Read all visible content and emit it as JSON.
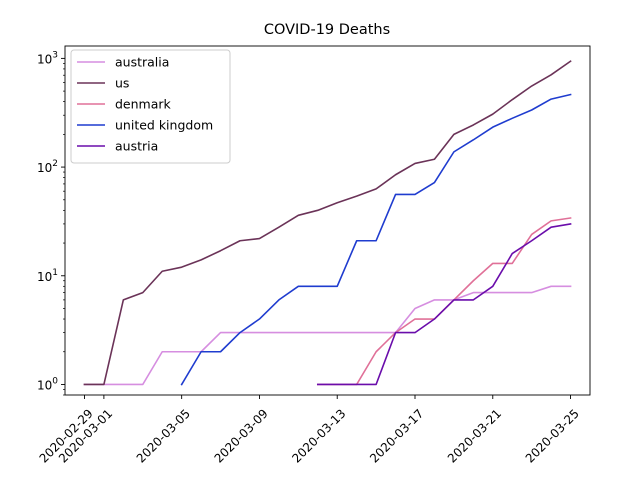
{
  "chart_data": {
    "type": "line",
    "title": "COVID-19 Deaths",
    "xlabel": "",
    "ylabel": "",
    "yscale": "log",
    "x_range": [
      "2020-02-28",
      "2020-03-26"
    ],
    "y_range": [
      0.8,
      1300
    ],
    "x_ticks": [
      "2020-02-29",
      "2020-03-01",
      "2020-03-05",
      "2020-03-09",
      "2020-03-13",
      "2020-03-17",
      "2020-03-21",
      "2020-03-25"
    ],
    "y_ticks": [
      {
        "value": 1,
        "base": "10",
        "exp": "0"
      },
      {
        "value": 10,
        "base": "10",
        "exp": "1"
      },
      {
        "value": 100,
        "base": "10",
        "exp": "2"
      },
      {
        "value": 1000,
        "base": "10",
        "exp": "3"
      }
    ],
    "grid": false,
    "legend_position": "top-left",
    "series": [
      {
        "name": "australia",
        "color": "#d68ee0",
        "x": [
          "2020-02-29",
          "2020-03-01",
          "2020-03-02",
          "2020-03-03",
          "2020-03-04",
          "2020-03-05",
          "2020-03-06",
          "2020-03-07",
          "2020-03-08",
          "2020-03-09",
          "2020-03-10",
          "2020-03-11",
          "2020-03-12",
          "2020-03-13",
          "2020-03-14",
          "2020-03-15",
          "2020-03-16",
          "2020-03-17",
          "2020-03-18",
          "2020-03-19",
          "2020-03-20",
          "2020-03-21",
          "2020-03-22",
          "2020-03-23",
          "2020-03-24",
          "2020-03-25"
        ],
        "values": [
          1,
          1,
          1,
          1,
          2,
          2,
          2,
          3,
          3,
          3,
          3,
          3,
          3,
          3,
          3,
          3,
          3,
          5,
          6,
          6,
          7,
          7,
          7,
          7,
          8,
          8
        ]
      },
      {
        "name": "us",
        "color": "#6b3358",
        "x": [
          "2020-02-29",
          "2020-03-01",
          "2020-03-02",
          "2020-03-03",
          "2020-03-04",
          "2020-03-05",
          "2020-03-06",
          "2020-03-07",
          "2020-03-08",
          "2020-03-09",
          "2020-03-10",
          "2020-03-11",
          "2020-03-12",
          "2020-03-13",
          "2020-03-14",
          "2020-03-15",
          "2020-03-16",
          "2020-03-17",
          "2020-03-18",
          "2020-03-19",
          "2020-03-20",
          "2020-03-21",
          "2020-03-22",
          "2020-03-23",
          "2020-03-24",
          "2020-03-25"
        ],
        "values": [
          1,
          1,
          6,
          7,
          11,
          12,
          14,
          17,
          21,
          22,
          28,
          36,
          40,
          47,
          54,
          63,
          85,
          108,
          118,
          200,
          244,
          307,
          417,
          557,
          706,
          942
        ]
      },
      {
        "name": "denmark",
        "color": "#e07098",
        "x": [
          "2020-03-12",
          "2020-03-13",
          "2020-03-14",
          "2020-03-15",
          "2020-03-16",
          "2020-03-17",
          "2020-03-18",
          "2020-03-19",
          "2020-03-20",
          "2020-03-21",
          "2020-03-22",
          "2020-03-23",
          "2020-03-24",
          "2020-03-25"
        ],
        "values": [
          1,
          1,
          1,
          2,
          3,
          4,
          4,
          6,
          9,
          13,
          13,
          24,
          32,
          34
        ]
      },
      {
        "name": "united kingdom",
        "color": "#1f3ccf",
        "x": [
          "2020-03-05",
          "2020-03-06",
          "2020-03-07",
          "2020-03-08",
          "2020-03-09",
          "2020-03-10",
          "2020-03-11",
          "2020-03-12",
          "2020-03-13",
          "2020-03-14",
          "2020-03-15",
          "2020-03-16",
          "2020-03-17",
          "2020-03-18",
          "2020-03-19",
          "2020-03-20",
          "2020-03-21",
          "2020-03-22",
          "2020-03-23",
          "2020-03-24",
          "2020-03-25"
        ],
        "values": [
          1,
          2,
          2,
          3,
          4,
          6,
          8,
          8,
          8,
          21,
          21,
          56,
          56,
          72,
          138,
          178,
          233,
          281,
          335,
          422,
          465
        ]
      },
      {
        "name": "austria",
        "color": "#6a0dab",
        "x": [
          "2020-03-12",
          "2020-03-13",
          "2020-03-14",
          "2020-03-15",
          "2020-03-16",
          "2020-03-17",
          "2020-03-18",
          "2020-03-19",
          "2020-03-20",
          "2020-03-21",
          "2020-03-22",
          "2020-03-23",
          "2020-03-24",
          "2020-03-25"
        ],
        "values": [
          1,
          1,
          1,
          1,
          3,
          3,
          4,
          6,
          6,
          8,
          16,
          21,
          28,
          30
        ]
      }
    ]
  }
}
